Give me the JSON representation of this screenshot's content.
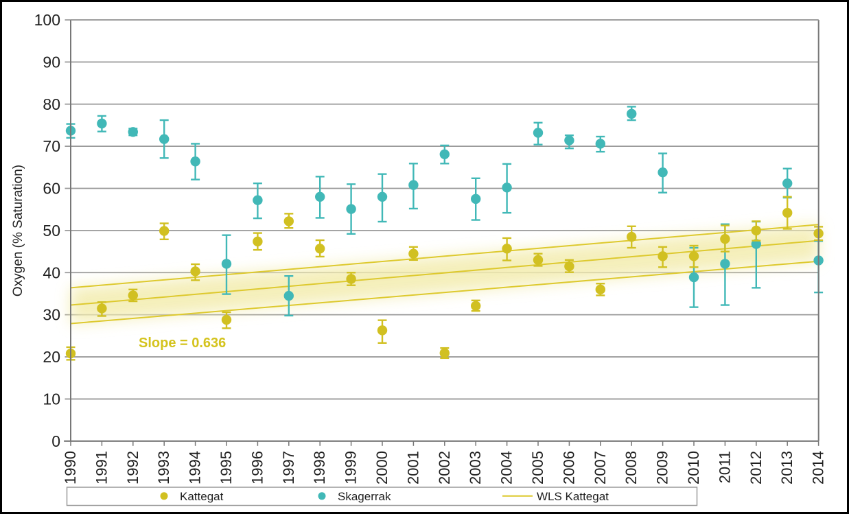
{
  "chart_data": {
    "type": "scatter",
    "title": "",
    "xlabel": "",
    "ylabel": "Oxygen (% Saturation)",
    "ylim": [
      0,
      100
    ],
    "yticks": [
      0,
      10,
      20,
      30,
      40,
      50,
      60,
      70,
      80,
      90,
      100
    ],
    "grid": true,
    "legend_position": "bottom",
    "years": [
      1990,
      1991,
      1992,
      1993,
      1994,
      1995,
      1996,
      1997,
      1998,
      1999,
      2000,
      2001,
      2002,
      2003,
      2004,
      2005,
      2006,
      2007,
      2008,
      2009,
      2010,
      2011,
      2012,
      2013,
      2014
    ],
    "series": [
      {
        "name": "Kattegat",
        "color": "#d1c021",
        "marker": "circle",
        "points": [
          {
            "year": 1990,
            "value": 20.8,
            "lo": 19.3,
            "hi": 22.3
          },
          {
            "year": 1991,
            "value": 31.5,
            "lo": 29.7,
            "hi": 33.0
          },
          {
            "year": 1992,
            "value": 34.6,
            "lo": 33.2,
            "hi": 36.0
          },
          {
            "year": 1993,
            "value": 49.9,
            "lo": 47.9,
            "hi": 51.7
          },
          {
            "year": 1994,
            "value": 40.3,
            "lo": 38.2,
            "hi": 42.0
          },
          {
            "year": 1995,
            "value": 28.8,
            "lo": 26.8,
            "hi": 30.6
          },
          {
            "year": 1996,
            "value": 47.4,
            "lo": 45.4,
            "hi": 49.4
          },
          {
            "year": 1997,
            "value": 52.2,
            "lo": 50.6,
            "hi": 54.0
          },
          {
            "year": 1998,
            "value": 45.7,
            "lo": 43.8,
            "hi": 47.7
          },
          {
            "year": 1999,
            "value": 38.5,
            "lo": 37.0,
            "hi": 40.0
          },
          {
            "year": 2000,
            "value": 26.3,
            "lo": 23.3,
            "hi": 28.7
          },
          {
            "year": 2001,
            "value": 44.5,
            "lo": 43.0,
            "hi": 46.1
          },
          {
            "year": 2002,
            "value": 20.9,
            "lo": 19.7,
            "hi": 22.1
          },
          {
            "year": 2003,
            "value": 32.1,
            "lo": 30.9,
            "hi": 33.4
          },
          {
            "year": 2004,
            "value": 45.7,
            "lo": 42.9,
            "hi": 48.2
          },
          {
            "year": 2005,
            "value": 43.0,
            "lo": 41.6,
            "hi": 44.5
          },
          {
            "year": 2006,
            "value": 41.5,
            "lo": 40.1,
            "hi": 43.0
          },
          {
            "year": 2007,
            "value": 36.0,
            "lo": 34.6,
            "hi": 37.4
          },
          {
            "year": 2008,
            "value": 48.5,
            "lo": 45.9,
            "hi": 51.0
          },
          {
            "year": 2009,
            "value": 43.9,
            "lo": 41.3,
            "hi": 46.1
          },
          {
            "year": 2010,
            "value": 43.9,
            "lo": 41.3,
            "hi": 46.4
          },
          {
            "year": 2011,
            "value": 48.0,
            "lo": 45.0,
            "hi": 51.2
          },
          {
            "year": 2012,
            "value": 50.0,
            "lo": 47.6,
            "hi": 52.2
          },
          {
            "year": 2013,
            "value": 54.2,
            "lo": 50.4,
            "hi": 58.0
          },
          {
            "year": 2014,
            "value": 49.3,
            "lo": 47.7,
            "hi": 50.9
          }
        ]
      },
      {
        "name": "Skagerrak",
        "color": "#41b8b7",
        "marker": "circle",
        "points": [
          {
            "year": 1990,
            "value": 73.7,
            "lo": 72.0,
            "hi": 75.3
          },
          {
            "year": 1991,
            "value": 75.4,
            "lo": 73.5,
            "hi": 77.2
          },
          {
            "year": 1992,
            "value": 73.4,
            "lo": 72.6,
            "hi": 74.2
          },
          {
            "year": 1993,
            "value": 71.7,
            "lo": 67.2,
            "hi": 76.2
          },
          {
            "year": 1994,
            "value": 66.4,
            "lo": 62.1,
            "hi": 70.6
          },
          {
            "year": 1995,
            "value": 42.1,
            "lo": 34.9,
            "hi": 48.9
          },
          {
            "year": 1996,
            "value": 57.2,
            "lo": 52.9,
            "hi": 61.2
          },
          {
            "year": 1997,
            "value": 34.5,
            "lo": 29.8,
            "hi": 39.2
          },
          {
            "year": 1998,
            "value": 58.0,
            "lo": 53.0,
            "hi": 62.8
          },
          {
            "year": 1999,
            "value": 55.1,
            "lo": 49.2,
            "hi": 61.0
          },
          {
            "year": 2000,
            "value": 58.0,
            "lo": 52.1,
            "hi": 63.4
          },
          {
            "year": 2001,
            "value": 60.8,
            "lo": 55.2,
            "hi": 65.9
          },
          {
            "year": 2002,
            "value": 68.1,
            "lo": 65.9,
            "hi": 70.2
          },
          {
            "year": 2003,
            "value": 57.5,
            "lo": 52.5,
            "hi": 62.4
          },
          {
            "year": 2004,
            "value": 60.2,
            "lo": 54.2,
            "hi": 65.8
          },
          {
            "year": 2005,
            "value": 73.2,
            "lo": 70.4,
            "hi": 75.6
          },
          {
            "year": 2006,
            "value": 71.4,
            "lo": 69.5,
            "hi": 72.6
          },
          {
            "year": 2007,
            "value": 70.6,
            "lo": 68.7,
            "hi": 72.3
          },
          {
            "year": 2008,
            "value": 77.7,
            "lo": 76.2,
            "hi": 79.4
          },
          {
            "year": 2009,
            "value": 63.8,
            "lo": 59.0,
            "hi": 68.3
          },
          {
            "year": 2010,
            "value": 38.9,
            "lo": 31.8,
            "hi": 45.9
          },
          {
            "year": 2011,
            "value": 42.1,
            "lo": 32.3,
            "hi": 51.5
          },
          {
            "year": 2012,
            "value": 46.8,
            "lo": 36.4,
            "hi": 52.1
          },
          {
            "year": 2013,
            "value": 61.2,
            "lo": 57.8,
            "hi": 64.7
          },
          {
            "year": 2014,
            "value": 42.9,
            "lo": 35.3,
            "hi": 47.5
          }
        ]
      }
    ],
    "trend": {
      "name": "WLS Kattegat",
      "color": "#ddc92e",
      "band_color": "#f3ecae",
      "slope": 0.636,
      "slope_label": "Slope = 0.636",
      "slope_label_color": "#d4c31d",
      "center": {
        "x0": 1990,
        "y0": 32.3,
        "x1": 2014,
        "y1": 47.6
      },
      "upper": {
        "x0": 1990,
        "y0": 36.4,
        "x1": 2014,
        "y1": 51.4
      },
      "lower": {
        "x0": 1990,
        "y0": 27.9,
        "x1": 2014,
        "y1": 42.7
      }
    },
    "colors": {
      "gridline": "#9a9a9a",
      "axis": "#777777",
      "frame": "#000000",
      "text": "#1f1f1f",
      "background": "#ffffff",
      "legend_border": "#9a9a9a"
    }
  }
}
